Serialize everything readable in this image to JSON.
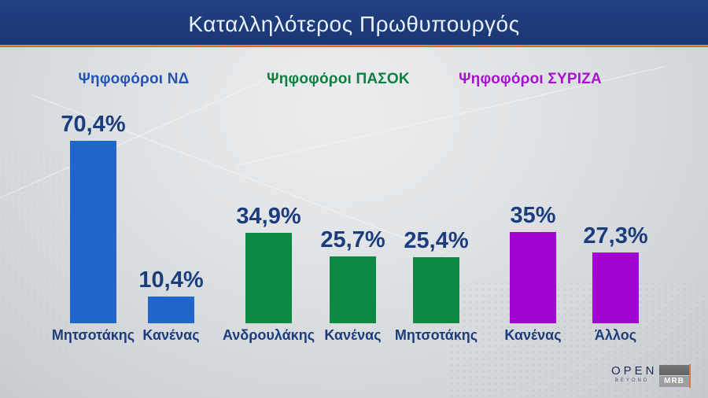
{
  "header": {
    "title": "Καταλληλότερος Πρωθυπουργός"
  },
  "chart_data": {
    "type": "bar",
    "title": "Καταλληλότερος Πρωθυπουργός",
    "value_suffix": "%",
    "ylim": [
      0,
      75
    ],
    "grid": false,
    "legend_position": "none",
    "groups": [
      {
        "label": "Ψηφοφόροι ΝΔ",
        "color": "#2067c9",
        "label_color": "#2553b2",
        "bars": [
          {
            "category": "Μητσοτάκης",
            "value": 70.4,
            "value_label": "70,4%"
          },
          {
            "category": "Κανένας",
            "value": 10.4,
            "value_label": "10,4%"
          }
        ]
      },
      {
        "label": "Ψηφοφόροι ΠΑΣΟΚ",
        "color": "#0e8943",
        "label_color": "#0f7f41",
        "bars": [
          {
            "category": "Ανδρουλάκης",
            "value": 34.9,
            "value_label": "34,9%"
          },
          {
            "category": "Κανένας",
            "value": 25.7,
            "value_label": "25,7%"
          },
          {
            "category": "Μητσοτάκης",
            "value": 25.4,
            "value_label": "25,4%"
          }
        ]
      },
      {
        "label": "Ψηφοφόροι ΣΥΡΙΖΑ",
        "color": "#a002d1",
        "label_color": "#a513ce",
        "bars": [
          {
            "category": "Κανένας",
            "value": 35,
            "value_label": "35%"
          },
          {
            "category": "Άλλος",
            "value": 27.3,
            "value_label": "27,3%"
          }
        ]
      }
    ]
  },
  "footer": {
    "open_logo": {
      "text": "OPEN",
      "subtext": "BEYOND"
    },
    "mrb_logo": {
      "text": "MRB"
    }
  },
  "colors": {
    "header_bg": "#1d3a79",
    "accent_orange": "#dd7a42",
    "value_text": "#1c3d7d"
  }
}
